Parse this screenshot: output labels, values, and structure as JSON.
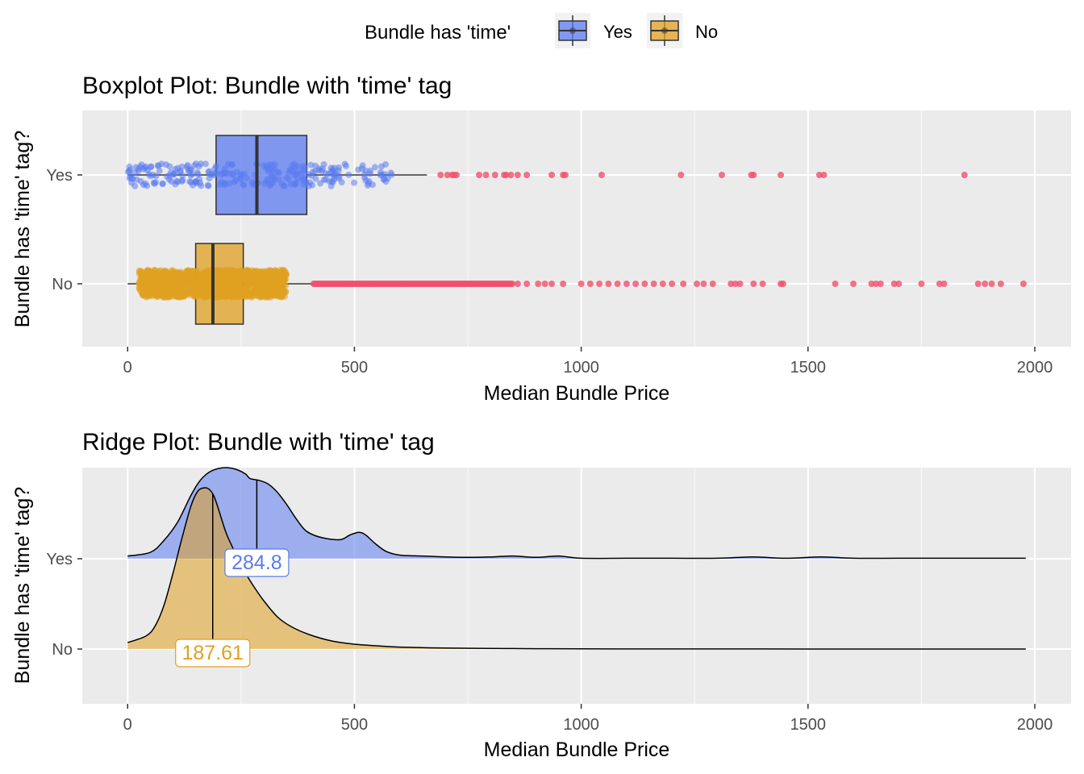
{
  "legend": {
    "title": "Bundle has 'time'",
    "items": [
      {
        "label": "Yes",
        "color": "#5b7bf0"
      },
      {
        "label": "No",
        "color": "#e0a020"
      }
    ],
    "placement": "top"
  },
  "chart_data": [
    {
      "type": "boxplot",
      "title": "Boxplot Plot: Bundle with 'time' tag",
      "xlabel": "Median Bundle Price",
      "ylabel": "Bundle has 'time' tag?",
      "xlim": [
        -100,
        2080
      ],
      "xticks": [
        0,
        500,
        1000,
        1500,
        2000
      ],
      "categories": [
        "Yes",
        "No"
      ],
      "grid": true,
      "series": [
        {
          "name": "Yes",
          "color": "#5b7bf0",
          "outlier_color": "#f0506e",
          "whisker_low": 0,
          "q1": 195,
          "median": 285,
          "q3": 395,
          "whisker_high": 660,
          "jitter_range": [
            0,
            585
          ],
          "outliers": [
            690,
            705,
            715,
            720,
            725,
            775,
            790,
            810,
            830,
            835,
            845,
            860,
            880,
            935,
            960,
            965,
            1045,
            1220,
            1310,
            1375,
            1380,
            1440,
            1525,
            1535,
            1845
          ]
        },
        {
          "name": "No",
          "color": "#e0a020",
          "outlier_color": "#f0506e",
          "whisker_low": 0,
          "q1": 150,
          "median": 188,
          "q3": 255,
          "whisker_high": 410,
          "jitter_range": [
            25,
            350
          ],
          "outlier_dense_range": [
            410,
            850
          ],
          "outliers": [
            860,
            880,
            905,
            920,
            935,
            960,
            1000,
            1020,
            1040,
            1060,
            1080,
            1100,
            1120,
            1140,
            1160,
            1180,
            1200,
            1225,
            1255,
            1270,
            1290,
            1330,
            1340,
            1350,
            1380,
            1400,
            1440,
            1445,
            1560,
            1600,
            1640,
            1650,
            1660,
            1690,
            1700,
            1750,
            1790,
            1800,
            1875,
            1890,
            1905,
            1925,
            1975
          ]
        }
      ]
    },
    {
      "type": "ridgeline",
      "title": "Ridge Plot: Bundle with 'time' tag",
      "xlabel": "Median Bundle Price",
      "ylabel": "Bundle has 'time' tag?",
      "xlim": [
        -100,
        2080
      ],
      "xticks": [
        0,
        500,
        1000,
        1500,
        2000
      ],
      "categories": [
        "Yes",
        "No"
      ],
      "grid": true,
      "series": [
        {
          "name": "Yes",
          "color": "#5b7bf0",
          "median_label": "284.8",
          "median": 284.8,
          "x": [
            0,
            50,
            80,
            110,
            140,
            160,
            180,
            200,
            220,
            240,
            260,
            270,
            290,
            310,
            330,
            350,
            370,
            390,
            410,
            440,
            470,
            490,
            510,
            525,
            545,
            570,
            600,
            650,
            700,
            750,
            800,
            850,
            900,
            950,
            1000,
            1100,
            1200,
            1300,
            1380,
            1450,
            1530,
            1600,
            1700,
            1800,
            1900,
            1980
          ],
          "density": [
            0.03,
            0.07,
            0.2,
            0.4,
            0.7,
            0.86,
            0.95,
            0.99,
            1.0,
            0.98,
            0.93,
            0.88,
            0.86,
            0.82,
            0.73,
            0.6,
            0.45,
            0.32,
            0.26,
            0.22,
            0.21,
            0.26,
            0.29,
            0.26,
            0.17,
            0.08,
            0.04,
            0.03,
            0.02,
            0.015,
            0.02,
            0.03,
            0.015,
            0.03,
            0.005,
            0.005,
            0.005,
            0.005,
            0.02,
            0.005,
            0.02,
            0.005,
            0.005,
            0.005,
            0.005,
            0.005
          ]
        },
        {
          "name": "No",
          "color": "#e0a020",
          "median_label": "187.61",
          "median": 187.61,
          "x": [
            0,
            40,
            60,
            80,
            100,
            120,
            140,
            155,
            170,
            180,
            190,
            200,
            210,
            220,
            240,
            260,
            280,
            300,
            330,
            360,
            400,
            450,
            500,
            550,
            600,
            700,
            800,
            900,
            1000,
            1200,
            1500,
            1800,
            1980
          ],
          "density": [
            0.04,
            0.08,
            0.14,
            0.27,
            0.47,
            0.69,
            0.89,
            0.98,
            1.0,
            0.99,
            0.95,
            0.87,
            0.78,
            0.7,
            0.58,
            0.47,
            0.38,
            0.3,
            0.2,
            0.14,
            0.09,
            0.05,
            0.03,
            0.02,
            0.012,
            0.006,
            0.004,
            0.002,
            0.001,
            0.0005,
            0.0003,
            0.0001,
            0.0
          ]
        }
      ]
    }
  ]
}
